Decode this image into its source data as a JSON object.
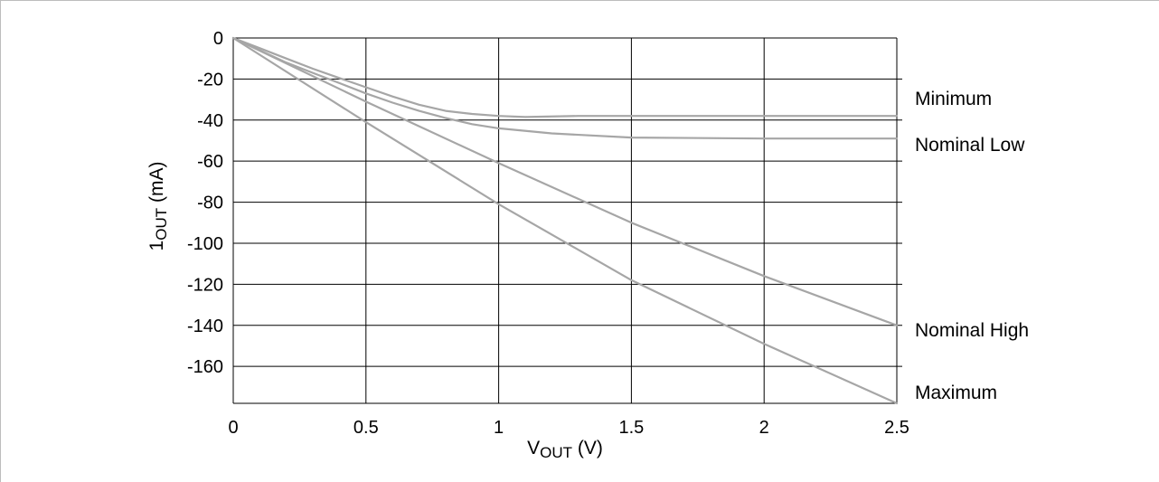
{
  "chart_data": {
    "type": "line",
    "xlabel": {
      "main": "V",
      "sub": "OUT",
      "rest": " (V)"
    },
    "ylabel": {
      "main": "1",
      "sub": "OUT",
      "rest": " (mA)"
    },
    "xlim": [
      0,
      2.5
    ],
    "ylim": [
      -178,
      0
    ],
    "xticks": [
      {
        "value": 0,
        "label": "0"
      },
      {
        "value": 0.5,
        "label": "0.5"
      },
      {
        "value": 1,
        "label": "1"
      },
      {
        "value": 1.5,
        "label": "1.5"
      },
      {
        "value": 2,
        "label": "2"
      },
      {
        "value": 2.5,
        "label": "2.5"
      }
    ],
    "yticks": [
      {
        "value": 0,
        "label": "0"
      },
      {
        "value": -20,
        "label": "-20"
      },
      {
        "value": -40,
        "label": "-40"
      },
      {
        "value": -60,
        "label": "-60"
      },
      {
        "value": -80,
        "label": "-80"
      },
      {
        "value": -100,
        "label": "-100"
      },
      {
        "value": -120,
        "label": "-120"
      },
      {
        "value": -140,
        "label": "-140"
      },
      {
        "value": -160,
        "label": "-160"
      }
    ],
    "grid": true,
    "line_color": "#a6a6a6",
    "series": [
      {
        "name": "Minimum",
        "x": [
          0,
          0.1,
          0.2,
          0.3,
          0.4,
          0.5,
          0.6,
          0.7,
          0.8,
          0.9,
          1.0,
          1.1,
          1.3,
          1.5,
          2.0,
          2.3,
          2.5
        ],
        "y": [
          0,
          -5,
          -10,
          -15,
          -19.5,
          -24,
          -28.5,
          -32.5,
          -35.5,
          -37,
          -38,
          -38.5,
          -38,
          -38,
          -38,
          -38,
          -38
        ]
      },
      {
        "name": "Nominal Low",
        "x": [
          0,
          0.1,
          0.2,
          0.3,
          0.4,
          0.5,
          0.6,
          0.7,
          0.8,
          0.9,
          1.0,
          1.2,
          1.5,
          2.0,
          2.5
        ],
        "y": [
          0,
          -6,
          -12,
          -17,
          -22,
          -27,
          -31.5,
          -35.5,
          -39,
          -42,
          -44,
          -46.5,
          -48.5,
          -49,
          -49
        ]
      },
      {
        "name": "Nominal High",
        "x": [
          0,
          0.5,
          1.0,
          1.5,
          2.0,
          2.5
        ],
        "y": [
          0,
          -31,
          -61,
          -90,
          -116,
          -140
        ]
      },
      {
        "name": "Maximum",
        "x": [
          0,
          0.5,
          1.0,
          1.5,
          2.0,
          2.5
        ],
        "y": [
          0,
          -41,
          -81,
          -118,
          -149,
          -178
        ]
      }
    ]
  }
}
